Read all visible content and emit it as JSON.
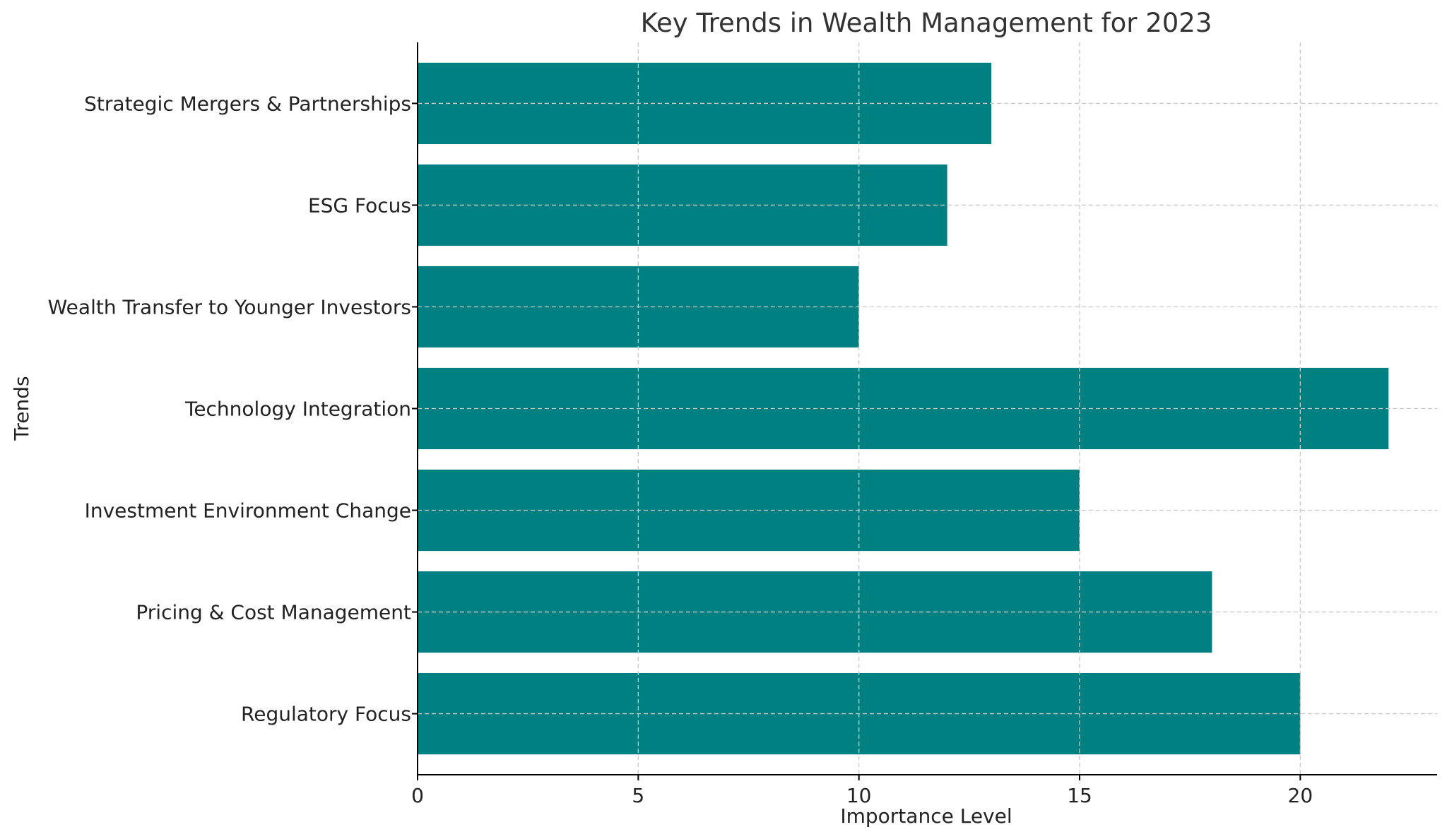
{
  "chart_data": {
    "type": "bar",
    "orientation": "horizontal",
    "title": "Key Trends in Wealth Management for 2023",
    "xlabel": "Importance Level",
    "ylabel": "Trends",
    "categories": [
      "Regulatory Focus",
      "Pricing & Cost Management",
      "Investment Environment Change",
      "Technology Integration",
      "Wealth Transfer to Younger Investors",
      "ESG Focus",
      "Strategic Mergers & Partnerships"
    ],
    "values": [
      20,
      18,
      15,
      22,
      10,
      12,
      13
    ],
    "xlim": [
      0,
      23.1
    ],
    "xticks": [
      0,
      5,
      10,
      15,
      20
    ],
    "grid": true,
    "bar_color": "#008080"
  }
}
